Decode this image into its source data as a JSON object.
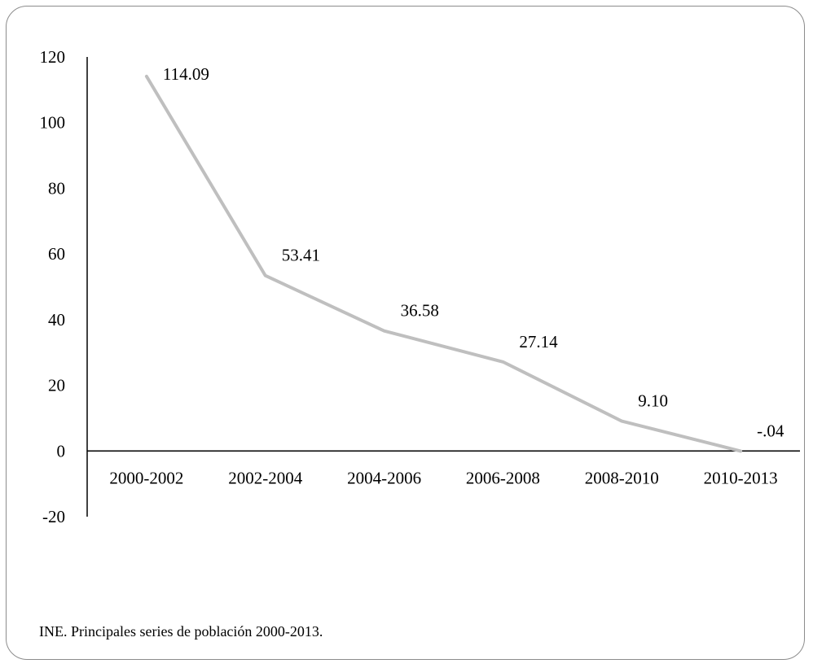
{
  "chart_data": {
    "type": "line",
    "categories": [
      "2000-2002",
      "2002-2004",
      "2004-2006",
      "2006-2008",
      "2008-2010",
      "2010-2013"
    ],
    "series": [
      {
        "values": [
          114.09,
          53.41,
          36.58,
          27.14,
          9.1,
          -0.04
        ]
      }
    ],
    "data_labels": [
      "114.09",
      "53.41",
      "36.58",
      "27.14",
      "9.10",
      "-.04"
    ],
    "yticks": [
      120,
      100,
      80,
      60,
      40,
      20,
      0,
      -20
    ],
    "ylim": [
      -20,
      120
    ],
    "title": "",
    "xlabel": "",
    "ylabel": "",
    "grid": false,
    "line_color": "#bfbfbf"
  },
  "source_note": "INE.  Principales series de población 2000-2013."
}
